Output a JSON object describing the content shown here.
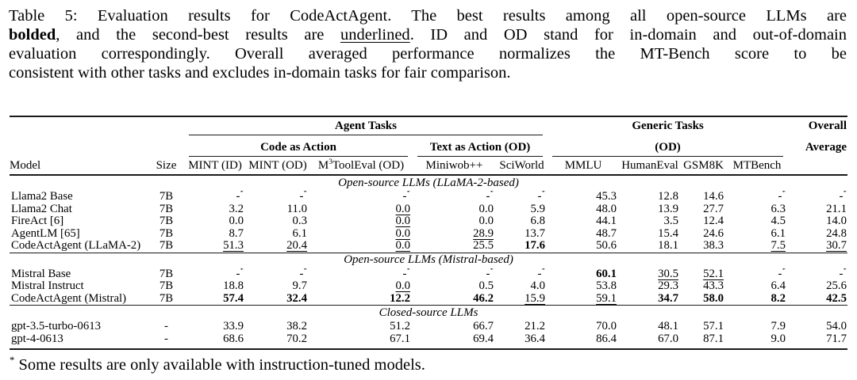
{
  "caption": {
    "lines": [
      "Table 5: Evaluation results for CodeActAgent. The best results among all open-source LLMs are",
      "**bolded**, and the second-best results are __underlined__. ID and OD stand for in-domain and out-of-domain",
      "evaluation correspondingly. Overall averaged performance normalizes the MT-Bench score to be",
      "consistent with other tasks and excludes in-domain tasks for fair comparison."
    ]
  },
  "table": {
    "groups": {
      "agent_tasks": "Agent Tasks",
      "code_as_action": "Code as Action",
      "text_as_action": "Text as Action (OD)",
      "generic_tasks": "Generic Tasks",
      "generic_tasks_od": "(OD)",
      "overall_line1": "Overall",
      "overall_line2": "Average"
    },
    "columns": [
      "Model",
      "Size",
      "MINT (ID)",
      "MINT (OD)",
      "M^3ToolEval (OD)",
      "Miniwob++",
      "SciWorld",
      "MMLU",
      "HumanEval",
      "GSM8K",
      "MTBench"
    ],
    "sections": [
      {
        "label": "Open-source LLMs (LLaMA-2-based)",
        "rows": [
          {
            "model": "Llama2 Base",
            "size": "7B",
            "values": [
              "-^*",
              "-^*",
              "-^*",
              "-^*",
              "-^*",
              "45.3",
              "12.8",
              "14.6",
              "-^*",
              "-^*"
            ]
          },
          {
            "model": "Llama2 Chat",
            "size": "7B",
            "values": [
              "3.2",
              "11.0",
              "__0.0__",
              "0.0",
              "5.9",
              "48.0",
              "13.9",
              "27.7",
              "6.3",
              "21.1"
            ]
          },
          {
            "model": "FireAct [6]",
            "size": "7B",
            "values": [
              "0.0",
              "0.3",
              "__0.0__",
              "0.0",
              "6.8",
              "44.1",
              "3.5",
              "12.4",
              "4.5",
              "14.0"
            ]
          },
          {
            "model": "AgentLM [65]",
            "size": "7B",
            "values": [
              "8.7",
              "6.1",
              "__0.0__",
              "__28.9__",
              "13.7",
              "48.7",
              "15.4",
              "24.6",
              "6.1",
              "24.8"
            ]
          },
          {
            "model": "CodeActAgent (LLaMA-2)",
            "size": "7B",
            "values": [
              "__51.3__",
              "__20.4__",
              "__0.0__",
              "25.5",
              "**17.6**",
              "50.6",
              "18.1",
              "38.3",
              "__7.5__",
              "__30.7__"
            ]
          }
        ]
      },
      {
        "label": "Open-source LLMs (Mistral-based)",
        "rows": [
          {
            "model": "Mistral Base",
            "size": "7B",
            "values": [
              "-^*",
              "-^*",
              "-^*",
              "-^*",
              "-^*",
              "**60.1**",
              "__30.5__",
              "__52.1__",
              "-^*",
              "-^*"
            ]
          },
          {
            "model": "Mistral Instruct",
            "size": "7B",
            "values": [
              "18.8",
              "9.7",
              "__0.0__",
              "0.5",
              "4.0",
              "53.8",
              "29.3",
              "43.3",
              "6.4",
              "25.6"
            ]
          },
          {
            "model": "CodeActAgent (Mistral)",
            "size": "7B",
            "values": [
              "**57.4**",
              "**32.4**",
              "**12.2**",
              "**46.2**",
              "__15.9__",
              "__59.1__",
              "**34.7**",
              "**58.0**",
              "**8.2**",
              "**42.5**"
            ]
          }
        ]
      },
      {
        "label": "Closed-source LLMs",
        "rows": [
          {
            "model": "gpt-3.5-turbo-0613",
            "size": "-",
            "values": [
              "33.9",
              "38.2",
              "51.2",
              "66.7",
              "21.2",
              "70.0",
              "48.1",
              "57.1",
              "7.9",
              "54.0"
            ]
          },
          {
            "model": "gpt-4-0613",
            "size": "-",
            "values": [
              "68.6",
              "70.2",
              "67.1",
              "69.4",
              "36.4",
              "86.4",
              "67.0",
              "87.1",
              "9.0",
              "71.7"
            ]
          }
        ]
      }
    ]
  },
  "footnote": "^* Some results are only available with instruction-tuned models."
}
